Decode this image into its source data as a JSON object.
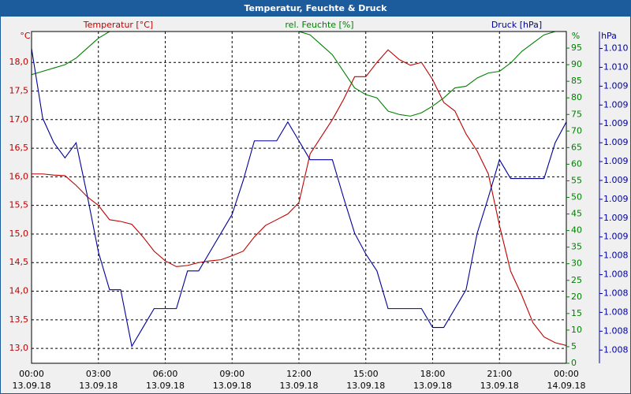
{
  "chart_data": {
    "type": "line",
    "title": "Temperatur, Feuchte & Druck",
    "y_unit": "°C",
    "y2_unit": "%",
    "y3_unit": "hPa",
    "x": [
      0,
      0.5,
      1,
      1.5,
      2,
      2.5,
      3,
      3.5,
      4,
      4.5,
      5,
      5.5,
      6,
      6.5,
      7,
      7.5,
      8,
      8.5,
      9,
      9.5,
      10,
      10.5,
      11,
      11.5,
      12,
      12.5,
      13,
      13.5,
      14,
      14.5,
      15,
      15.5,
      16,
      16.5,
      17,
      17.5,
      18,
      18.5,
      19,
      19.5,
      20,
      20.5,
      21,
      21.5,
      22,
      22.5,
      23,
      23.5,
      24
    ],
    "xlim": [
      0,
      24
    ],
    "xticks": [
      {
        "value": 0,
        "label": "00:00"
      },
      {
        "value": 3,
        "label": "03:00"
      },
      {
        "value": 6,
        "label": "06:00"
      },
      {
        "value": 9,
        "label": "09:00"
      },
      {
        "value": 12,
        "label": "12:00"
      },
      {
        "value": 15,
        "label": "15:00"
      },
      {
        "value": 18,
        "label": "18:00"
      },
      {
        "value": 21,
        "label": "21:00"
      },
      {
        "value": 24,
        "label": "00:00"
      }
    ],
    "xtick_dates": [
      "13.09.18",
      "13.09.18",
      "13.09.18",
      "13.09.18",
      "13.09.18",
      "13.09.18",
      "13.09.18",
      "13.09.18",
      "14.09.18"
    ],
    "ylim": [
      12.74,
      18.54
    ],
    "yticks": [
      {
        "value": 13,
        "label": "13,0"
      },
      {
        "value": 13.5,
        "label": "13,5"
      },
      {
        "value": 14,
        "label": "14,0"
      },
      {
        "value": 14.5,
        "label": "14,5"
      },
      {
        "value": 15,
        "label": "15,0"
      },
      {
        "value": 15.5,
        "label": "15,5"
      },
      {
        "value": 16,
        "label": "16,0"
      },
      {
        "value": 16.5,
        "label": "16,5"
      },
      {
        "value": 17,
        "label": "17,0"
      },
      {
        "value": 17.5,
        "label": "17,5"
      },
      {
        "value": 18,
        "label": "18,0"
      }
    ],
    "y2lim": [
      0,
      100
    ],
    "y2ticks": [
      0,
      5,
      10,
      15,
      20,
      25,
      30,
      35,
      40,
      45,
      50,
      55,
      60,
      65,
      70,
      75,
      80,
      85,
      90,
      95
    ],
    "y3lim": [
      1007.93,
      1009.69
    ],
    "y3ticks": [
      {
        "value": 1008.0,
        "label": "1.008"
      },
      {
        "value": 1008.1,
        "label": "1.008"
      },
      {
        "value": 1008.2,
        "label": "1.008"
      },
      {
        "value": 1008.3,
        "label": "1.008"
      },
      {
        "value": 1008.4,
        "label": "1.008"
      },
      {
        "value": 1008.5,
        "label": "1.008"
      },
      {
        "value": 1008.6,
        "label": "1.009"
      },
      {
        "value": 1008.7,
        "label": "1.009"
      },
      {
        "value": 1008.8,
        "label": "1.009"
      },
      {
        "value": 1008.9,
        "label": "1.009"
      },
      {
        "value": 1009.0,
        "label": "1.009"
      },
      {
        "value": 1009.1,
        "label": "1.009"
      },
      {
        "value": 1009.2,
        "label": "1.009"
      },
      {
        "value": 1009.3,
        "label": "1.009"
      },
      {
        "value": 1009.4,
        "label": "1.009"
      },
      {
        "value": 1009.5,
        "label": "1.010"
      },
      {
        "value": 1009.6,
        "label": "1.010"
      }
    ],
    "grid": true,
    "series": [
      {
        "name": "Temperatur [°C]",
        "color": "#c00000",
        "axis": "y",
        "values": [
          16.05,
          16.05,
          16.03,
          16.02,
          15.85,
          15.65,
          15.5,
          15.25,
          15.22,
          15.17,
          14.95,
          14.7,
          14.53,
          14.43,
          14.45,
          14.5,
          14.53,
          14.55,
          14.62,
          14.7,
          14.95,
          15.15,
          15.25,
          15.35,
          15.55,
          16.4,
          16.7,
          17.0,
          17.35,
          17.75,
          17.75,
          18.0,
          18.22,
          18.05,
          17.95,
          18.0,
          17.7,
          17.3,
          17.15,
          16.75,
          16.45,
          16.05,
          15.15,
          14.35,
          13.93,
          13.45,
          13.2,
          13.1,
          13.05
        ]
      },
      {
        "name": "rel. Feuchte [%]",
        "color": "#008000",
        "axis": "y2",
        "values": [
          87,
          88,
          89,
          90,
          92,
          95,
          98,
          100,
          100,
          100,
          100,
          100,
          100,
          100,
          100,
          100,
          100,
          100,
          100,
          100,
          100,
          100,
          100,
          100,
          100,
          99,
          96,
          93,
          88,
          83,
          81,
          80,
          76,
          75,
          74.5,
          75.5,
          77.5,
          80,
          83,
          83.5,
          86,
          87.5,
          88,
          90.5,
          94,
          96.5,
          99,
          100,
          100
        ]
      },
      {
        "name": "Druck [hPa]",
        "color": "#000099",
        "axis": "y3",
        "values": [
          1009.6,
          1009.23,
          1009.1,
          1009.02,
          1009.1,
          1008.82,
          1008.52,
          1008.32,
          1008.32,
          1008.02,
          1008.12,
          1008.22,
          1008.22,
          1008.22,
          1008.42,
          1008.42,
          1008.52,
          1008.62,
          1008.72,
          1008.9,
          1009.11,
          1009.11,
          1009.11,
          1009.21,
          1009.11,
          1009.01,
          1009.01,
          1009.01,
          1008.81,
          1008.62,
          1008.51,
          1008.42,
          1008.22,
          1008.22,
          1008.22,
          1008.22,
          1008.12,
          1008.12,
          1008.22,
          1008.32,
          1008.62,
          1008.81,
          1009.01,
          1008.91,
          1008.91,
          1008.91,
          1008.91,
          1009.1,
          1009.21
        ]
      }
    ]
  }
}
